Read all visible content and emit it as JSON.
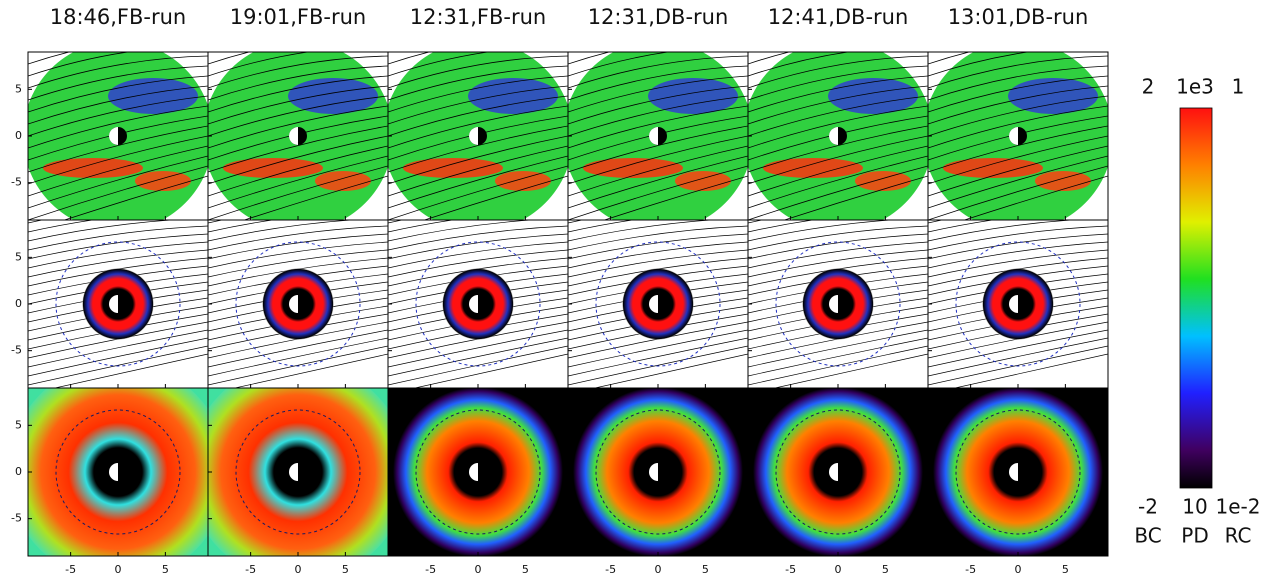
{
  "columns": [
    "18:46,FB-run",
    "19:01,FB-run",
    "12:31,FB-run",
    "12:31,DB-run",
    "12:41,DB-run",
    "13:01,DB-run"
  ],
  "xlim": [
    -9.5,
    9.5
  ],
  "ylim": [
    -9,
    9
  ],
  "x_ticks": [
    -5,
    0,
    5
  ],
  "y_ticks": [
    5,
    0,
    -5
  ],
  "colorbar": {
    "top": [
      "2",
      "1e3",
      "1"
    ],
    "bottom": [
      "-2",
      "10",
      "1e-2"
    ],
    "names": [
      "BC",
      "PD",
      "RC"
    ]
  }
}
